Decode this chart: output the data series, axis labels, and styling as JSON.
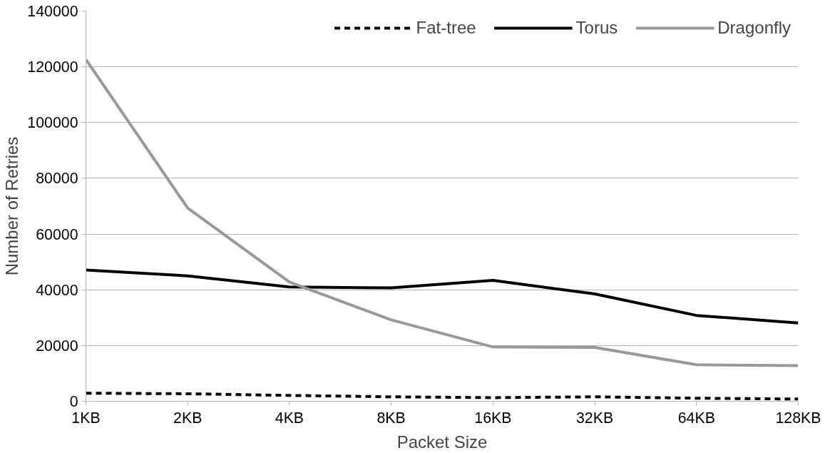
{
  "chart_data": {
    "type": "line",
    "xlabel": "Packet Size",
    "ylabel": "Number of Retries",
    "categories": [
      "1KB",
      "2KB",
      "4KB",
      "8KB",
      "16KB",
      "32KB",
      "64KB",
      "128KB"
    ],
    "series": [
      {
        "name": "Fat-tree",
        "color": "#000000",
        "line_style": "dashed",
        "values": [
          2900,
          2700,
          2100,
          1600,
          1300,
          1600,
          1100,
          800
        ]
      },
      {
        "name": "Torus",
        "color": "#000000",
        "line_style": "solid",
        "values": [
          47100,
          45000,
          41000,
          40700,
          43400,
          38500,
          30800,
          28100
        ]
      },
      {
        "name": "Dragonfly",
        "color": "#999999",
        "line_style": "solid",
        "values": [
          122600,
          69300,
          42800,
          29200,
          19500,
          19300,
          13100,
          12800
        ]
      }
    ],
    "ylim": [
      0,
      140000
    ],
    "yticks": [
      0,
      20000,
      40000,
      60000,
      80000,
      100000,
      120000,
      140000
    ],
    "grid": "y",
    "legend": "top right",
    "marker": "none"
  }
}
